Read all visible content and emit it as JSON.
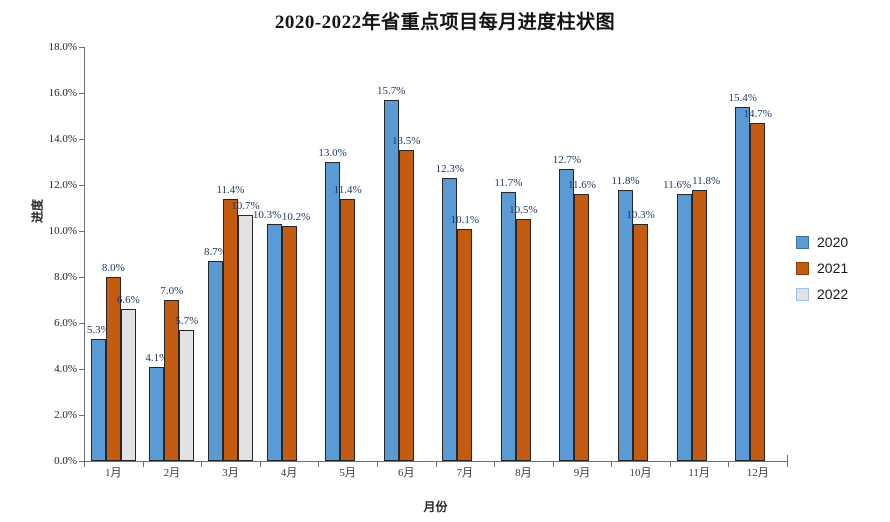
{
  "chart_data": {
    "type": "bar",
    "title": "2020-2022年省重点项目每月进度柱状图",
    "xlabel": "月份",
    "ylabel": "进度",
    "categories": [
      "1月",
      "2月",
      "3月",
      "4月",
      "5月",
      "6月",
      "7月",
      "8月",
      "9月",
      "10月",
      "11月",
      "12月"
    ],
    "series": [
      {
        "name": "2020",
        "color": "#5B9BD5",
        "legend_border": "#41719C",
        "values": [
          5.3,
          4.1,
          8.7,
          10.3,
          13.0,
          15.7,
          12.3,
          11.7,
          12.7,
          11.8,
          11.6,
          15.4
        ]
      },
      {
        "name": "2021",
        "color": "#C55A11",
        "legend_border": "#8E3F0A",
        "values": [
          8.0,
          7.0,
          11.4,
          10.2,
          11.4,
          13.5,
          10.1,
          10.5,
          11.6,
          10.3,
          11.8,
          14.7
        ]
      },
      {
        "name": "2022",
        "color": "#E2E2E2",
        "legend_border": "#9DC3E6",
        "values": [
          6.6,
          5.7,
          10.7,
          null,
          null,
          null,
          null,
          null,
          null,
          null,
          null,
          null
        ]
      }
    ],
    "ylim": [
      0,
      18
    ],
    "ytick_step": 2,
    "ytick_format": "percent-one-decimal",
    "value_label_format": "percent-one-decimal",
    "grid": false,
    "legend_position": "right",
    "bar_border_color": "#262626",
    "value_label_color": "#1F3864",
    "axis_color": "#6E6E6E"
  }
}
